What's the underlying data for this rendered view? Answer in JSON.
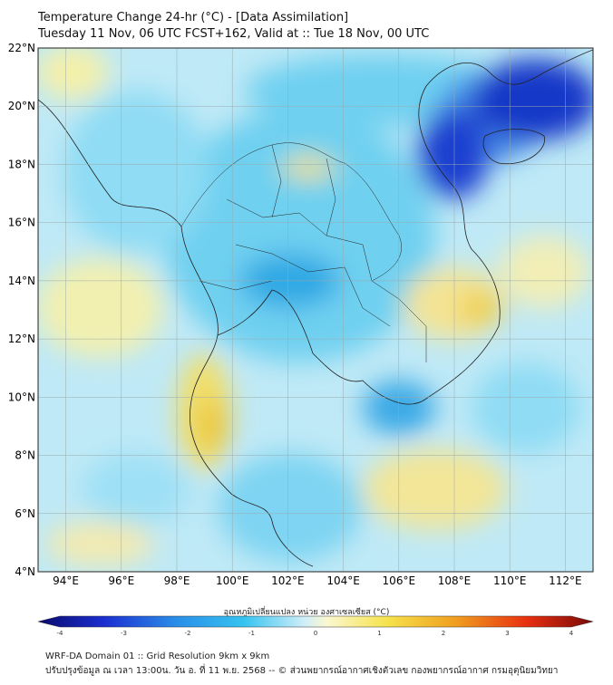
{
  "header": {
    "title_line1": "Temperature Change 24-hr (°C) - [Data Assimilation]",
    "title_line2": "Tuesday 11 Nov, 06 UTC FCST+162, Valid at :: Tue 18 Nov, 00 UTC"
  },
  "map": {
    "lat_labels": [
      "22°N",
      "20°N",
      "18°N",
      "16°N",
      "14°N",
      "12°N",
      "10°N",
      "8°N",
      "6°N",
      "4°N"
    ],
    "lon_labels": [
      "94°E",
      "96°E",
      "98°E",
      "100°E",
      "102°E",
      "104°E",
      "106°E",
      "108°E",
      "110°E",
      "112°E"
    ]
  },
  "colorbar": {
    "label": "อุณหภูมิเปลี่ยนแปลง หน่วย องศาเซลเซียส (°C)",
    "ticks": [
      "-4",
      "-3",
      "-2",
      "-1",
      "0",
      "1",
      "2",
      "3",
      "4"
    ],
    "range": [
      -4,
      4
    ]
  },
  "footer": {
    "line1": "WRF-DA Domain 01 :: Grid Resolution 9km x 9km",
    "line2": "ปรับปรุงข้อมูล ณ เวลา 13:00น. วัน อ. ที่ 11 พ.ย. 2568 -- © ส่วนพยากรณ์อากาศเชิงตัวเลข กองพยากรณ์อากาศ กรมอุตุนิยมวิทยา"
  }
}
